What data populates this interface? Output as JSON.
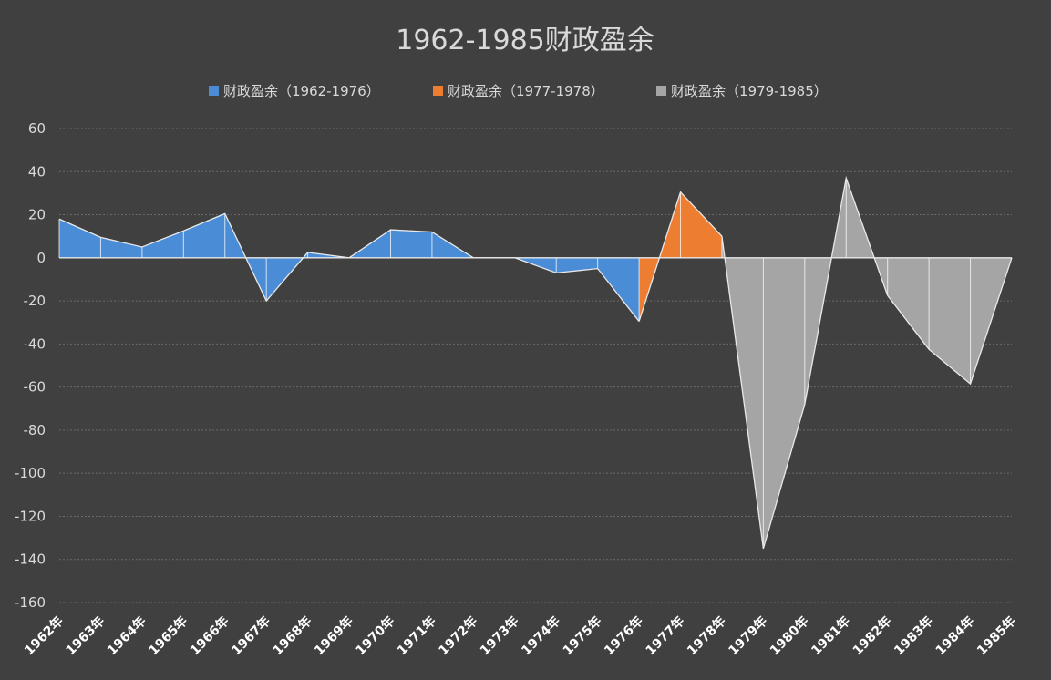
{
  "chart_data": {
    "type": "area",
    "title": "1962-1985财政盈余",
    "legend_position": "top",
    "grid": true,
    "ylim": [
      -160,
      60
    ],
    "yticks": [
      60,
      40,
      20,
      0,
      -20,
      -40,
      -60,
      -80,
      -100,
      -120,
      -140,
      -160
    ],
    "categories": [
      "1962年",
      "1963年",
      "1964年",
      "1965年",
      "1966年",
      "1967年",
      "1968年",
      "1969年",
      "1970年",
      "1971年",
      "1972年",
      "1973年",
      "1974年",
      "1975年",
      "1976年",
      "1977年",
      "1978年",
      "1979年",
      "1980年",
      "1981年",
      "1982年",
      "1983年",
      "1984年",
      "1985年"
    ],
    "values": [
      18,
      9.5,
      5,
      12.5,
      20.5,
      -20,
      2.5,
      0,
      13,
      12,
      0,
      0,
      -7,
      -5,
      -29.5,
      30.5,
      10,
      -135,
      -68,
      37,
      -17.5,
      -42.5,
      -58.5,
      0
    ],
    "series": [
      {
        "name": "财政盈余（1962-1976）",
        "color": "#4a8cd6",
        "start": 0,
        "end": 14
      },
      {
        "name": "财政盈余（1977-1978）",
        "color": "#ed7d31",
        "start": 14,
        "end": 16
      },
      {
        "name": "财政盈余（1979-1985）",
        "color": "#a5a5a5",
        "start": 16,
        "end": 23
      }
    ]
  }
}
